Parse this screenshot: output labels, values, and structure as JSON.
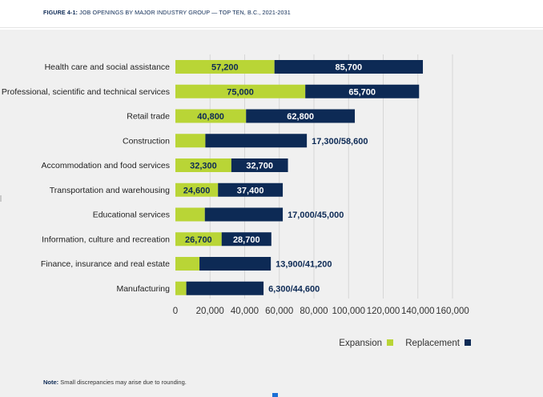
{
  "figure": {
    "label": "FIGURE 4-1:",
    "title": "JOB OPENINGS BY MAJOR INDUSTRY GROUP — TOP TEN, B.C., 2021-2031"
  },
  "note": {
    "label": "Note:",
    "text": "Small discrepancies may arise due to rounding."
  },
  "chart_data": {
    "type": "bar",
    "orientation": "horizontal",
    "stacked": true,
    "categories": [
      "Health care and social assistance",
      "Professional, scientific and technical services",
      "Retail trade",
      "Construction",
      "Accommodation and food services",
      "Transportation and warehousing",
      "Educational services",
      "Information, culture and recreation",
      "Finance, insurance and real estate",
      "Manufacturing"
    ],
    "series": [
      {
        "name": "Expansion",
        "color": "#b9d536",
        "values": [
          57200,
          75000,
          40800,
          17300,
          32300,
          24600,
          17000,
          26700,
          13900,
          6300
        ]
      },
      {
        "name": "Replacement",
        "color": "#0d2a55",
        "values": [
          85700,
          65700,
          62800,
          58600,
          32700,
          37400,
          45000,
          28700,
          41200,
          44600
        ]
      }
    ],
    "bar_labels": [
      {
        "expansion": "57,200",
        "replacement": "85,700"
      },
      {
        "expansion": "75,000",
        "replacement": "65,700"
      },
      {
        "expansion": "40,800",
        "replacement": "62,800"
      },
      {
        "combined": "17,300/58,600"
      },
      {
        "expansion": "32,300",
        "replacement": "32,700"
      },
      {
        "expansion": "24,600",
        "replacement": "37,400"
      },
      {
        "combined": "17,000/45,000"
      },
      {
        "expansion": "26,700",
        "replacement": "28,700"
      },
      {
        "combined": "13,900/41,200"
      },
      {
        "combined": "6,300/44,600"
      }
    ],
    "x_ticks": [
      "0",
      "20,000",
      "40,000",
      "60,000",
      "80,000",
      "100,000",
      "120,000",
      "140,000",
      "160,000"
    ],
    "x_tick_values": [
      0,
      20000,
      40000,
      60000,
      80000,
      100000,
      120000,
      140000,
      160000
    ],
    "xlim": [
      0,
      160000
    ],
    "grid": true,
    "legend_position": "bottom-right"
  }
}
